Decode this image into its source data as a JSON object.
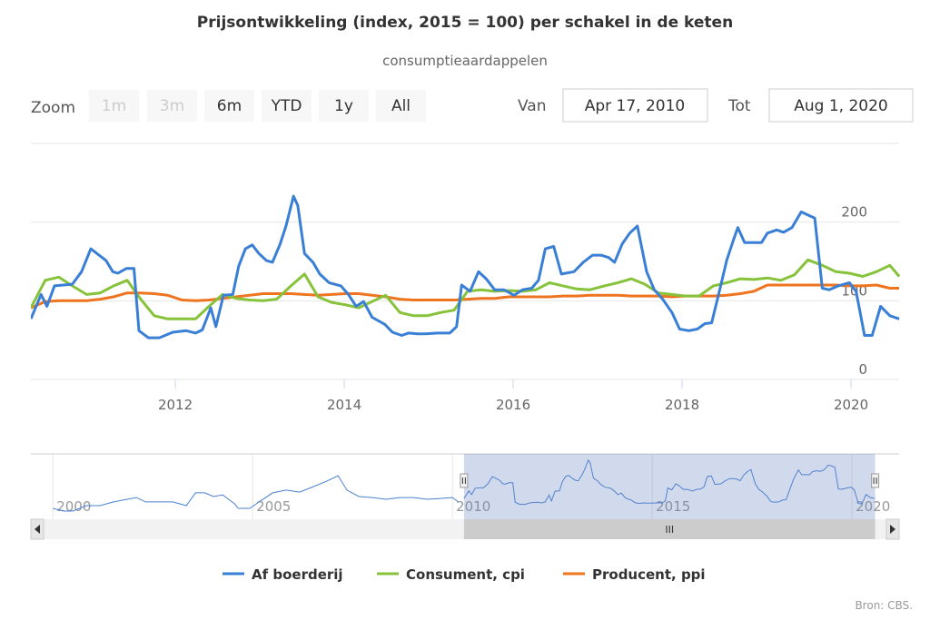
{
  "chart_data": {
    "type": "line",
    "title": "Prijsontwikkeling (index, 2015 = 100) per schakel in de keten",
    "subtitle": "consumptieaardappelen",
    "xlim": [
      2010.29,
      2020.58
    ],
    "xticks": [
      2012,
      2014,
      2016,
      2018,
      2020
    ],
    "ylim": [
      0,
      300
    ],
    "yticks": [
      0,
      100,
      200
    ],
    "grid": true,
    "series": [
      {
        "name": "Af boerderij",
        "color": "#3a7fd6",
        "x": [
          2010.29,
          2010.41,
          2010.48,
          2010.57,
          2010.78,
          2010.89,
          2011.0,
          2011.18,
          2011.26,
          2011.32,
          2011.42,
          2011.51,
          2011.57,
          2011.68,
          2011.81,
          2011.97,
          2012.13,
          2012.24,
          2012.32,
          2012.42,
          2012.48,
          2012.57,
          2012.68,
          2012.75,
          2012.83,
          2012.91,
          2012.99,
          2013.08,
          2013.15,
          2013.24,
          2013.31,
          2013.4,
          2013.45,
          2013.53,
          2013.63,
          2013.71,
          2013.82,
          2013.96,
          2014.05,
          2014.14,
          2014.23,
          2014.33,
          2014.48,
          2014.57,
          2014.68,
          2014.76,
          2014.87,
          2014.96,
          2015.11,
          2015.25,
          2015.33,
          2015.39,
          2015.49,
          2015.59,
          2015.68,
          2015.78,
          2015.89,
          2016.01,
          2016.11,
          2016.22,
          2016.3,
          2016.38,
          2016.48,
          2016.57,
          2016.72,
          2016.83,
          2016.94,
          2017.04,
          2017.13,
          2017.2,
          2017.29,
          2017.38,
          2017.47,
          2017.58,
          2017.67,
          2017.77,
          2017.88,
          2017.97,
          2018.08,
          2018.18,
          2018.27,
          2018.35,
          2018.45,
          2018.53,
          2018.61,
          2018.66,
          2018.74,
          2018.85,
          2018.94,
          2019.01,
          2019.12,
          2019.2,
          2019.3,
          2019.41,
          2019.49,
          2019.57,
          2019.66,
          2019.74,
          2019.85,
          2019.98,
          2020.06,
          2020.16,
          2020.25,
          2020.35,
          2020.46,
          2020.57
        ],
        "values": [
          77,
          108,
          93,
          119,
          121,
          137,
          166,
          151,
          137,
          135,
          141,
          141,
          62,
          53,
          53,
          60,
          62,
          59,
          63,
          91,
          67,
          107,
          108,
          144,
          166,
          171,
          160,
          151,
          149,
          172,
          195,
          233,
          221,
          160,
          149,
          134,
          123,
          119,
          108,
          93,
          99,
          79,
          70,
          60,
          56,
          59,
          58,
          58,
          59,
          59,
          67,
          120,
          112,
          137,
          128,
          114,
          114,
          107,
          114,
          116,
          126,
          166,
          169,
          134,
          137,
          149,
          158,
          158,
          155,
          149,
          172,
          186,
          195,
          137,
          114,
          102,
          85,
          64,
          62,
          64,
          71,
          72,
          116,
          152,
          178,
          193,
          174,
          174,
          174,
          186,
          190,
          187,
          193,
          213,
          209,
          205,
          116,
          114,
          119,
          123,
          112,
          56,
          56,
          93,
          81,
          77
        ]
      },
      {
        "name": "Consument, cpi",
        "color": "#86c23a",
        "x": [
          2010.29,
          2010.46,
          2010.62,
          2010.78,
          2010.95,
          2011.11,
          2011.27,
          2011.43,
          2011.59,
          2011.75,
          2011.91,
          2012.08,
          2012.24,
          2012.4,
          2012.56,
          2012.72,
          2012.88,
          2013.04,
          2013.2,
          2013.37,
          2013.53,
          2013.69,
          2013.85,
          2014.01,
          2014.17,
          2014.33,
          2014.49,
          2014.66,
          2014.82,
          2014.98,
          2015.14,
          2015.3,
          2015.46,
          2015.62,
          2015.78,
          2015.95,
          2016.11,
          2016.27,
          2016.43,
          2016.59,
          2016.75,
          2016.91,
          2017.08,
          2017.24,
          2017.4,
          2017.56,
          2017.72,
          2017.88,
          2018.04,
          2018.2,
          2018.37,
          2018.53,
          2018.69,
          2018.85,
          2019.01,
          2019.17,
          2019.33,
          2019.49,
          2019.66,
          2019.82,
          2019.98,
          2020.14,
          2020.3,
          2020.46,
          2020.57
        ],
        "values": [
          91,
          126,
          130,
          119,
          108,
          110,
          119,
          126,
          102,
          81,
          77,
          77,
          77,
          93,
          108,
          103,
          101,
          100,
          102,
          119,
          134,
          105,
          98,
          95,
          91,
          99,
          107,
          85,
          81,
          81,
          85,
          88,
          112,
          114,
          112,
          113,
          112,
          114,
          123,
          119,
          115,
          114,
          119,
          123,
          128,
          121,
          110,
          108,
          106,
          106,
          119,
          123,
          128,
          127,
          129,
          126,
          133,
          152,
          145,
          137,
          135,
          131,
          137,
          145,
          131
        ]
      },
      {
        "name": "Producent, ppi",
        "color": "#ee7420",
        "x": [
          2010.29,
          2010.46,
          2010.62,
          2010.78,
          2010.95,
          2011.11,
          2011.27,
          2011.43,
          2011.59,
          2011.75,
          2011.91,
          2012.08,
          2012.24,
          2012.4,
          2012.56,
          2012.72,
          2012.88,
          2013.04,
          2013.2,
          2013.37,
          2013.53,
          2013.69,
          2013.85,
          2014.01,
          2014.17,
          2014.33,
          2014.49,
          2014.66,
          2014.82,
          2014.98,
          2015.14,
          2015.3,
          2015.46,
          2015.62,
          2015.78,
          2015.95,
          2016.11,
          2016.27,
          2016.43,
          2016.59,
          2016.75,
          2016.91,
          2017.08,
          2017.24,
          2017.4,
          2017.56,
          2017.72,
          2017.88,
          2018.04,
          2018.2,
          2018.37,
          2018.53,
          2018.69,
          2018.85,
          2019.01,
          2019.17,
          2019.33,
          2019.49,
          2019.66,
          2019.82,
          2019.98,
          2020.14,
          2020.3,
          2020.46,
          2020.57
        ],
        "values": [
          91,
          99,
          100,
          100,
          100,
          102,
          105,
          110,
          110,
          109,
          107,
          101,
          100,
          101,
          103,
          105,
          107,
          109,
          109,
          109,
          108,
          107,
          108,
          109,
          109,
          107,
          105,
          102,
          101,
          101,
          101,
          101,
          102,
          103,
          103,
          105,
          105,
          105,
          105,
          106,
          106,
          107,
          107,
          107,
          106,
          106,
          106,
          105,
          106,
          106,
          106,
          107,
          109,
          112,
          120,
          120,
          120,
          120,
          120,
          120,
          119,
          119,
          120,
          116,
          116
        ]
      }
    ],
    "navigator": {
      "xlim": [
        1999.45,
        2021.18
      ],
      "xticks": [
        2000,
        2005,
        2010,
        2015,
        2020
      ],
      "ylim": [
        0,
        240
      ],
      "color": "#4a80d2",
      "series": [
        {
          "x": [
            2000.0,
            2000.27,
            2000.5,
            2000.84,
            2001.18,
            2001.52,
            2001.86,
            2002.09,
            2002.32,
            2002.66,
            2003.0,
            2003.34,
            2003.57,
            2003.8,
            2004.02,
            2004.25,
            2004.55,
            2004.64,
            2004.93,
            2005.16,
            2005.5,
            2005.84,
            2006.18,
            2006.52,
            2006.86,
            2007.14,
            2007.36,
            2007.66,
            2008.0,
            2008.34,
            2008.68,
            2009.02,
            2009.36,
            2009.7,
            2010.0,
            2010.15
          ],
          "values": [
            37,
            26,
            26,
            48,
            48,
            63,
            74,
            81,
            63,
            63,
            63,
            48,
            100,
            100,
            85,
            92,
            55,
            37,
            37,
            63,
            100,
            111,
            103,
            125,
            148,
            170,
            111,
            85,
            81,
            74,
            81,
            81,
            74,
            77,
            81,
            63
          ]
        }
      ]
    }
  },
  "ui": {
    "zoom_label": "Zoom",
    "zoom_buttons": [
      "1m",
      "3m",
      "6m",
      "YTD",
      "1y",
      "All"
    ],
    "from_label": "Van",
    "from_value": "Apr 17, 2010",
    "to_label": "Tot",
    "to_value": "Aug 1, 2020",
    "scrollbar_grip": "III",
    "source": "Bron: CBS."
  }
}
